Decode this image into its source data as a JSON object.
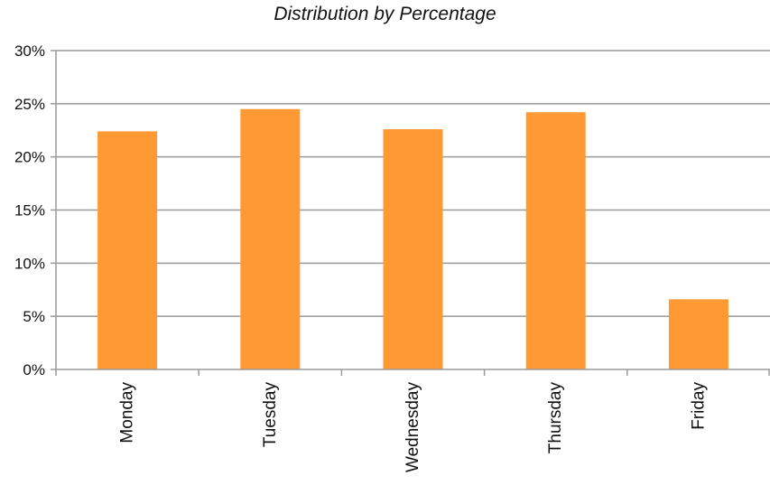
{
  "chart_data": {
    "type": "bar",
    "title": "Distribution by Percentage",
    "xlabel": "",
    "ylabel": "",
    "categories": [
      "Monday",
      "Tuesday",
      "Wednesday",
      "Thursday",
      "Friday"
    ],
    "values": [
      22.4,
      24.5,
      22.6,
      24.2,
      6.6
    ],
    "ylim": [
      0,
      30
    ],
    "yticks": [
      "0%",
      "5%",
      "10%",
      "15%",
      "20%",
      "25%",
      "30%"
    ],
    "grid": true,
    "legend": "none",
    "colors": {
      "bar": "#FF9933",
      "grid": "#9a9a9a",
      "axis": "#9a9a9a",
      "text": "#111111"
    }
  }
}
